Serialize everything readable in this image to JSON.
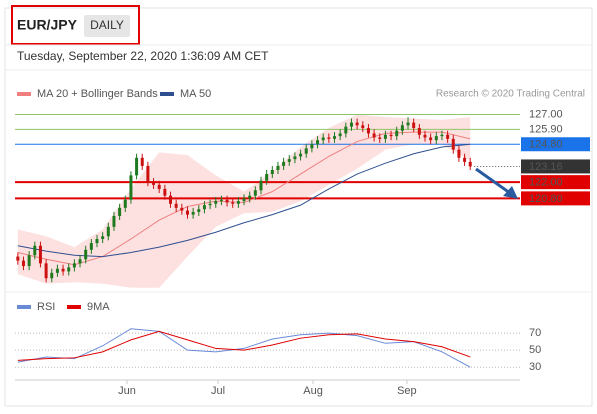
{
  "chart_data": {
    "type": "candlestick",
    "title": "EUR/JPY",
    "timeframe": "DAILY",
    "subtitle": "Tuesday, September 22, 2020 1:36:09 AM CET",
    "source": "Research © 2020 Trading Central",
    "up_color": "#1f7a1f",
    "down_color": "#cc1111",
    "x": [
      0,
      1,
      2,
      3,
      4,
      5,
      6,
      7,
      8,
      9,
      10,
      11,
      12,
      13,
      14,
      15,
      16,
      17,
      18,
      19,
      20,
      21,
      22,
      23,
      24,
      25,
      26,
      27,
      28,
      29,
      30,
      31,
      32,
      33,
      34,
      35,
      36,
      37,
      38,
      39,
      40,
      41,
      42,
      43,
      44,
      45,
      46,
      47,
      48,
      49,
      50,
      51,
      52,
      53,
      54,
      55,
      56,
      57,
      58,
      59,
      60,
      61,
      62,
      63,
      64,
      65,
      66,
      67,
      68,
      69,
      70,
      71,
      72,
      73,
      74,
      75,
      76,
      77,
      78,
      79,
      80
    ],
    "open": [
      116.5,
      116.2,
      115.8,
      116.6,
      117.3,
      116.0,
      114.9,
      115.3,
      115.6,
      115.4,
      115.7,
      116.0,
      116.3,
      117.0,
      117.5,
      117.8,
      118.0,
      118.7,
      119.5,
      120.1,
      120.7,
      122.5,
      123.8,
      123.2,
      122.0,
      121.8,
      121.5,
      121.0,
      120.4,
      120.1,
      119.9,
      119.6,
      119.8,
      120.0,
      120.3,
      120.4,
      120.6,
      120.7,
      120.5,
      120.4,
      120.6,
      120.8,
      121.0,
      121.4,
      122.1,
      122.6,
      122.9,
      123.2,
      123.5,
      123.7,
      123.9,
      124.1,
      124.5,
      124.8,
      125.1,
      125.3,
      125.2,
      125.4,
      125.6,
      126.1,
      126.4,
      126.2,
      126.0,
      125.6,
      125.3,
      125.2,
      125.5,
      125.4,
      125.8,
      126.2,
      126.4,
      126.0,
      125.5,
      125.3,
      125.1,
      125.4,
      125.5,
      125.2,
      124.4,
      123.8,
      123.5
    ],
    "high": [
      116.8,
      116.5,
      116.9,
      117.6,
      117.6,
      116.3,
      115.6,
      115.9,
      115.9,
      116.0,
      116.3,
      116.6,
      117.3,
      117.8,
      118.1,
      118.3,
      119.0,
      119.8,
      120.4,
      121.0,
      122.8,
      124.1,
      124.1,
      123.5,
      122.3,
      122.1,
      121.8,
      121.3,
      120.7,
      120.4,
      120.2,
      120.1,
      120.3,
      120.6,
      120.7,
      120.9,
      121.0,
      121.0,
      120.8,
      120.9,
      121.1,
      121.3,
      121.7,
      122.4,
      122.9,
      123.2,
      123.5,
      123.8,
      124.0,
      124.2,
      124.4,
      124.8,
      125.1,
      125.4,
      125.6,
      125.6,
      125.7,
      125.9,
      126.4,
      126.7,
      126.7,
      126.5,
      126.3,
      125.9,
      125.6,
      125.8,
      125.8,
      126.1,
      126.5,
      126.8,
      126.7,
      126.3,
      125.8,
      125.6,
      125.7,
      125.8,
      125.8,
      125.5,
      124.7,
      124.1,
      123.8
    ],
    "low": [
      115.9,
      115.5,
      115.5,
      116.3,
      115.7,
      114.6,
      114.6,
      115.0,
      115.1,
      115.1,
      115.4,
      115.7,
      116.0,
      116.7,
      117.2,
      117.5,
      117.7,
      118.4,
      119.2,
      119.8,
      120.4,
      122.2,
      122.9,
      121.7,
      121.5,
      121.2,
      120.7,
      120.1,
      119.8,
      119.6,
      119.3,
      119.3,
      119.5,
      119.7,
      120.0,
      120.1,
      120.3,
      120.2,
      120.1,
      120.1,
      120.3,
      120.5,
      120.7,
      121.1,
      121.8,
      122.3,
      122.6,
      122.9,
      123.2,
      123.4,
      123.6,
      123.8,
      124.2,
      124.5,
      124.8,
      124.9,
      124.9,
      125.1,
      125.3,
      125.8,
      125.9,
      125.7,
      125.3,
      125.0,
      124.9,
      124.9,
      125.1,
      125.1,
      125.5,
      125.9,
      125.7,
      125.2,
      125.0,
      124.8,
      124.8,
      125.1,
      124.9,
      124.1,
      123.5,
      123.2,
      122.9
    ],
    "close": [
      116.2,
      115.8,
      116.6,
      117.3,
      116.0,
      114.9,
      115.3,
      115.6,
      115.4,
      115.7,
      116.0,
      116.3,
      117.0,
      117.5,
      117.8,
      118.0,
      118.7,
      119.5,
      120.1,
      120.7,
      122.5,
      123.8,
      123.2,
      122.0,
      121.8,
      121.5,
      121.0,
      120.4,
      120.1,
      119.9,
      119.6,
      119.8,
      120.0,
      120.3,
      120.4,
      120.6,
      120.7,
      120.5,
      120.4,
      120.6,
      120.8,
      121.0,
      121.4,
      122.1,
      122.6,
      122.9,
      123.2,
      123.5,
      123.7,
      123.9,
      124.1,
      124.5,
      124.8,
      125.1,
      125.3,
      125.2,
      125.4,
      125.6,
      126.1,
      126.4,
      126.2,
      126.0,
      125.6,
      125.3,
      125.2,
      125.5,
      125.4,
      125.8,
      126.2,
      126.4,
      126.0,
      125.5,
      125.3,
      125.1,
      125.4,
      125.5,
      125.2,
      124.4,
      123.8,
      123.5,
      123.16
    ],
    "series": [
      {
        "name": "MA 20 + Bollinger Bands",
        "color": "#f08080",
        "band_color": "#fde0e0",
        "x": [
          0,
          5,
          10,
          15,
          20,
          25,
          30,
          35,
          40,
          45,
          50,
          55,
          60,
          65,
          70,
          75,
          80
        ],
        "values": [
          116.8,
          116.3,
          115.9,
          116.5,
          117.8,
          119.2,
          120.2,
          120.6,
          120.5,
          121.3,
          122.6,
          123.9,
          125.0,
          125.6,
          125.7,
          125.7,
          125.2
        ],
        "upper": [
          118.5,
          118.0,
          117.2,
          118.5,
          121.5,
          124.2,
          124.0,
          122.5,
          121.3,
          122.8,
          124.6,
          126.0,
          127.0,
          126.8,
          126.7,
          126.6,
          126.8
        ],
        "lower": [
          115.2,
          114.5,
          114.6,
          114.5,
          114.2,
          114.2,
          116.5,
          118.7,
          119.7,
          119.8,
          120.6,
          121.8,
          123.0,
          124.4,
          124.8,
          124.8,
          123.6
        ]
      },
      {
        "name": "MA 50",
        "color": "#2f4f8f",
        "x": [
          0,
          5,
          10,
          15,
          20,
          25,
          30,
          35,
          40,
          45,
          50,
          55,
          60,
          65,
          70,
          75,
          80
        ],
        "values": [
          117.3,
          116.9,
          116.6,
          116.5,
          116.8,
          117.2,
          117.7,
          118.3,
          119.0,
          119.6,
          120.3,
          121.5,
          122.6,
          123.4,
          124.1,
          124.6,
          124.8
        ]
      }
    ],
    "levels": [
      {
        "value": 127,
        "label": "127.00",
        "color": "#8fc46a",
        "style": "text",
        "width": 1
      },
      {
        "value": 125.9,
        "label": "125.90",
        "color": "#8fc46a",
        "style": "text",
        "width": 1
      },
      {
        "value": 124.8,
        "label": "124.80",
        "color": "#1a73e8",
        "style": "box",
        "width": 1
      },
      {
        "value": 123.16,
        "label": "123.16",
        "color": "#333333",
        "style": "last",
        "width": 0
      },
      {
        "value": 122,
        "label": "122.00",
        "color": "#e00000",
        "style": "box",
        "width": 2
      },
      {
        "value": 120.8,
        "label": "120.80",
        "color": "#e00000",
        "style": "box",
        "width": 2
      }
    ],
    "xlim": [
      -0.5,
      88.8
    ],
    "ylim": [
      114.4,
      127.7
    ],
    "xticks": [
      {
        "value": 19.3,
        "label": "Jun"
      },
      {
        "value": 35.4,
        "label": "Jul"
      },
      {
        "value": 52.2,
        "label": "Aug"
      },
      {
        "value": 68.8,
        "label": "Sep"
      }
    ],
    "rsi": {
      "ylim": [
        15,
        90
      ],
      "yticks": [
        70,
        50,
        30
      ],
      "series": [
        {
          "name": "RSI",
          "color": "#6a8ad8",
          "x": [
            0,
            5,
            10,
            15,
            20,
            25,
            30,
            35,
            40,
            45,
            50,
            55,
            60,
            65,
            70,
            75,
            80
          ],
          "values": [
            36,
            42,
            40,
            55,
            75,
            72,
            50,
            48,
            52,
            63,
            68,
            70,
            67,
            58,
            60,
            48,
            30
          ]
        },
        {
          "name": "9MA",
          "color": "#e00000",
          "x": [
            0,
            5,
            10,
            15,
            20,
            25,
            30,
            35,
            40,
            45,
            50,
            55,
            60,
            65,
            70,
            75,
            80
          ],
          "values": [
            38,
            40,
            41,
            48,
            62,
            72,
            62,
            52,
            50,
            56,
            64,
            68,
            69,
            63,
            60,
            54,
            42
          ]
        }
      ]
    }
  }
}
